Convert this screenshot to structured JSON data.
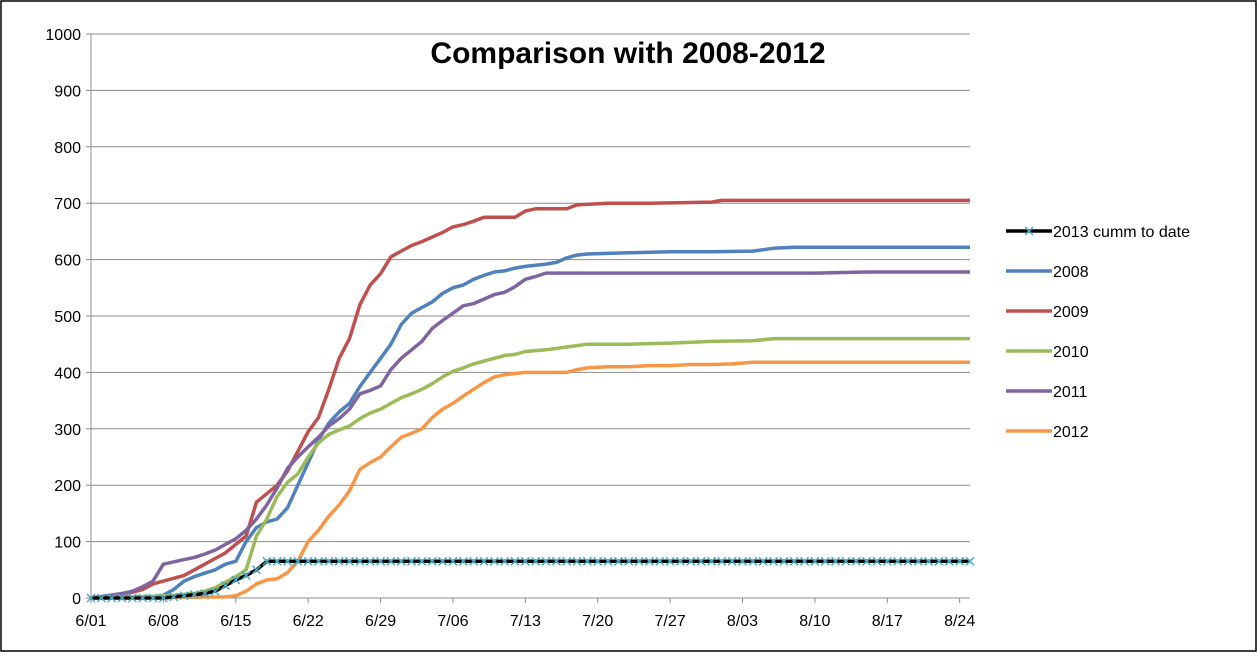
{
  "chart_data": {
    "type": "line",
    "title": "Comparison with 2008-2012",
    "xlabel": "",
    "ylabel": "",
    "ylim": [
      0,
      1000
    ],
    "yticks": [
      0,
      100,
      200,
      300,
      400,
      500,
      600,
      700,
      800,
      900,
      1000
    ],
    "x_tick_labels": [
      "6/01",
      "6/08",
      "6/15",
      "6/22",
      "6/29",
      "7/06",
      "7/13",
      "7/20",
      "7/27",
      "8/03",
      "8/10",
      "8/17",
      "8/24"
    ],
    "x_tick_day_index": [
      0,
      7,
      14,
      21,
      28,
      35,
      42,
      49,
      56,
      63,
      70,
      77,
      84
    ],
    "x_range_days": [
      0,
      85
    ],
    "grid": "horizontal",
    "legend_position": "right",
    "series": [
      {
        "name": "2013 cumm to date",
        "color": "#000000",
        "marker": "x",
        "marker_color": "#4bacc6",
        "days": [
          0,
          7,
          8,
          9,
          10,
          11,
          12,
          13,
          14,
          15,
          16,
          17,
          85
        ],
        "values": [
          0,
          0,
          2,
          4,
          6,
          8,
          12,
          22,
          32,
          40,
          50,
          65,
          65
        ]
      },
      {
        "name": "2008",
        "color": "#4f81bd",
        "days": [
          0,
          6,
          7,
          8,
          9,
          10,
          12,
          13,
          14,
          15,
          16,
          17,
          18,
          19,
          20,
          21,
          22,
          23,
          24,
          25,
          26,
          27,
          28,
          29,
          30,
          31,
          32,
          33,
          34,
          35,
          36,
          37,
          38,
          39,
          40,
          41,
          42,
          43,
          44,
          45,
          46,
          47,
          48,
          52,
          56,
          60,
          64,
          66,
          68,
          85
        ],
        "values": [
          0,
          2,
          5,
          15,
          30,
          38,
          50,
          60,
          65,
          100,
          125,
          135,
          140,
          160,
          200,
          240,
          280,
          310,
          330,
          345,
          375,
          400,
          425,
          450,
          485,
          505,
          515,
          525,
          540,
          550,
          555,
          565,
          572,
          578,
          580,
          585,
          588,
          590,
          592,
          595,
          603,
          608,
          610,
          612,
          614,
          614,
          615,
          620,
          622,
          622
        ]
      },
      {
        "name": "2009",
        "color": "#c0504d",
        "days": [
          0,
          3,
          5,
          6,
          7,
          8,
          9,
          10,
          11,
          12,
          13,
          14,
          15,
          16,
          17,
          18,
          19,
          20,
          21,
          22,
          23,
          24,
          25,
          26,
          27,
          28,
          29,
          30,
          31,
          32,
          33,
          34,
          35,
          36,
          37,
          38,
          39,
          40,
          41,
          42,
          43,
          44,
          45,
          46,
          47,
          50,
          54,
          60,
          61,
          85
        ],
        "values": [
          0,
          5,
          15,
          25,
          30,
          35,
          40,
          50,
          60,
          70,
          80,
          95,
          110,
          170,
          185,
          200,
          225,
          260,
          295,
          320,
          370,
          425,
          460,
          520,
          555,
          575,
          605,
          615,
          625,
          632,
          640,
          648,
          658,
          662,
          668,
          675,
          675,
          675,
          675,
          686,
          690,
          690,
          690,
          690,
          697,
          700,
          700,
          702,
          705,
          705
        ]
      },
      {
        "name": "2010",
        "color": "#9bbb59",
        "days": [
          0,
          4,
          6,
          8,
          10,
          11,
          12,
          13,
          14,
          15,
          16,
          17,
          18,
          19,
          20,
          21,
          22,
          23,
          24,
          25,
          26,
          27,
          28,
          29,
          30,
          31,
          32,
          33,
          34,
          35,
          36,
          37,
          38,
          39,
          40,
          41,
          42,
          44,
          46,
          48,
          52,
          56,
          60,
          64,
          66,
          85
        ],
        "values": [
          0,
          2,
          3,
          5,
          8,
          12,
          18,
          28,
          38,
          50,
          110,
          140,
          180,
          205,
          220,
          250,
          275,
          290,
          298,
          305,
          318,
          328,
          335,
          345,
          355,
          362,
          370,
          380,
          392,
          402,
          408,
          415,
          420,
          425,
          430,
          432,
          437,
          440,
          445,
          450,
          450,
          452,
          455,
          456,
          460,
          460
        ]
      },
      {
        "name": "2011",
        "color": "#8064a2",
        "days": [
          0,
          3,
          4,
          5,
          6,
          7,
          9,
          10,
          11,
          12,
          13,
          14,
          15,
          16,
          17,
          18,
          19,
          20,
          21,
          22,
          23,
          24,
          25,
          26,
          27,
          28,
          29,
          30,
          31,
          32,
          33,
          34,
          35,
          36,
          37,
          38,
          39,
          40,
          41,
          42,
          43,
          44,
          50,
          70,
          75,
          85
        ],
        "values": [
          0,
          8,
          12,
          20,
          30,
          60,
          68,
          72,
          78,
          85,
          95,
          105,
          120,
          140,
          165,
          195,
          230,
          250,
          268,
          285,
          305,
          318,
          335,
          362,
          368,
          376,
          405,
          425,
          440,
          455,
          478,
          492,
          505,
          518,
          522,
          530,
          538,
          542,
          552,
          565,
          570,
          576,
          576,
          576,
          578,
          578
        ]
      },
      {
        "name": "2012",
        "color": "#f79646",
        "days": [
          0,
          13,
          14,
          15,
          16,
          17,
          18,
          19,
          20,
          21,
          22,
          23,
          24,
          25,
          26,
          27,
          28,
          29,
          30,
          31,
          32,
          33,
          34,
          35,
          36,
          37,
          38,
          39,
          40,
          41,
          42,
          44,
          46,
          47,
          48,
          50,
          52,
          54,
          56,
          58,
          60,
          62,
          64,
          85
        ],
        "values": [
          0,
          2,
          4,
          12,
          25,
          32,
          34,
          45,
          65,
          100,
          120,
          145,
          165,
          190,
          228,
          240,
          250,
          268,
          285,
          292,
          300,
          320,
          335,
          345,
          358,
          370,
          382,
          392,
          396,
          398,
          400,
          400,
          400,
          405,
          408,
          410,
          410,
          412,
          412,
          414,
          414,
          415,
          418,
          418
        ]
      }
    ]
  }
}
